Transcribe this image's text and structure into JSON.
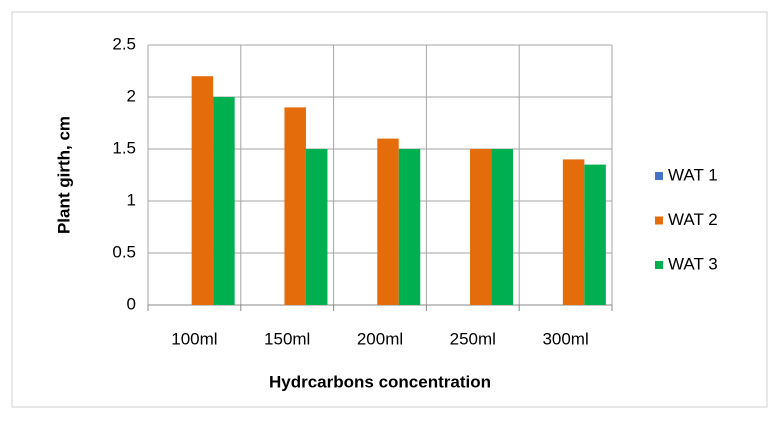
{
  "chart_data": {
    "type": "bar",
    "categories": [
      "100ml",
      "150ml",
      "200ml",
      "250ml",
      "300ml"
    ],
    "series": [
      {
        "name": "WAT 1",
        "color": "#4472c4",
        "values": [
          0,
          0,
          0,
          0,
          0
        ]
      },
      {
        "name": "WAT 2",
        "color": "#e46c0a",
        "values": [
          2.2,
          1.9,
          1.6,
          1.5,
          1.4
        ]
      },
      {
        "name": "WAT 3",
        "color": "#00b050",
        "values": [
          2.0,
          1.5,
          1.5,
          1.5,
          1.35
        ]
      }
    ],
    "ylabel": "Plant girth, cm",
    "xlabel": "Hydrcarbons concentration",
    "ylim": [
      0,
      2.5
    ],
    "yticks": [
      0,
      {
        "value": 0.5,
        "label": "0.5"
      },
      1,
      {
        "value": 1.5,
        "label": "1.5"
      },
      2,
      {
        "value": 2.5,
        "label": "2.5"
      }
    ],
    "grid": true,
    "legend": "right"
  }
}
